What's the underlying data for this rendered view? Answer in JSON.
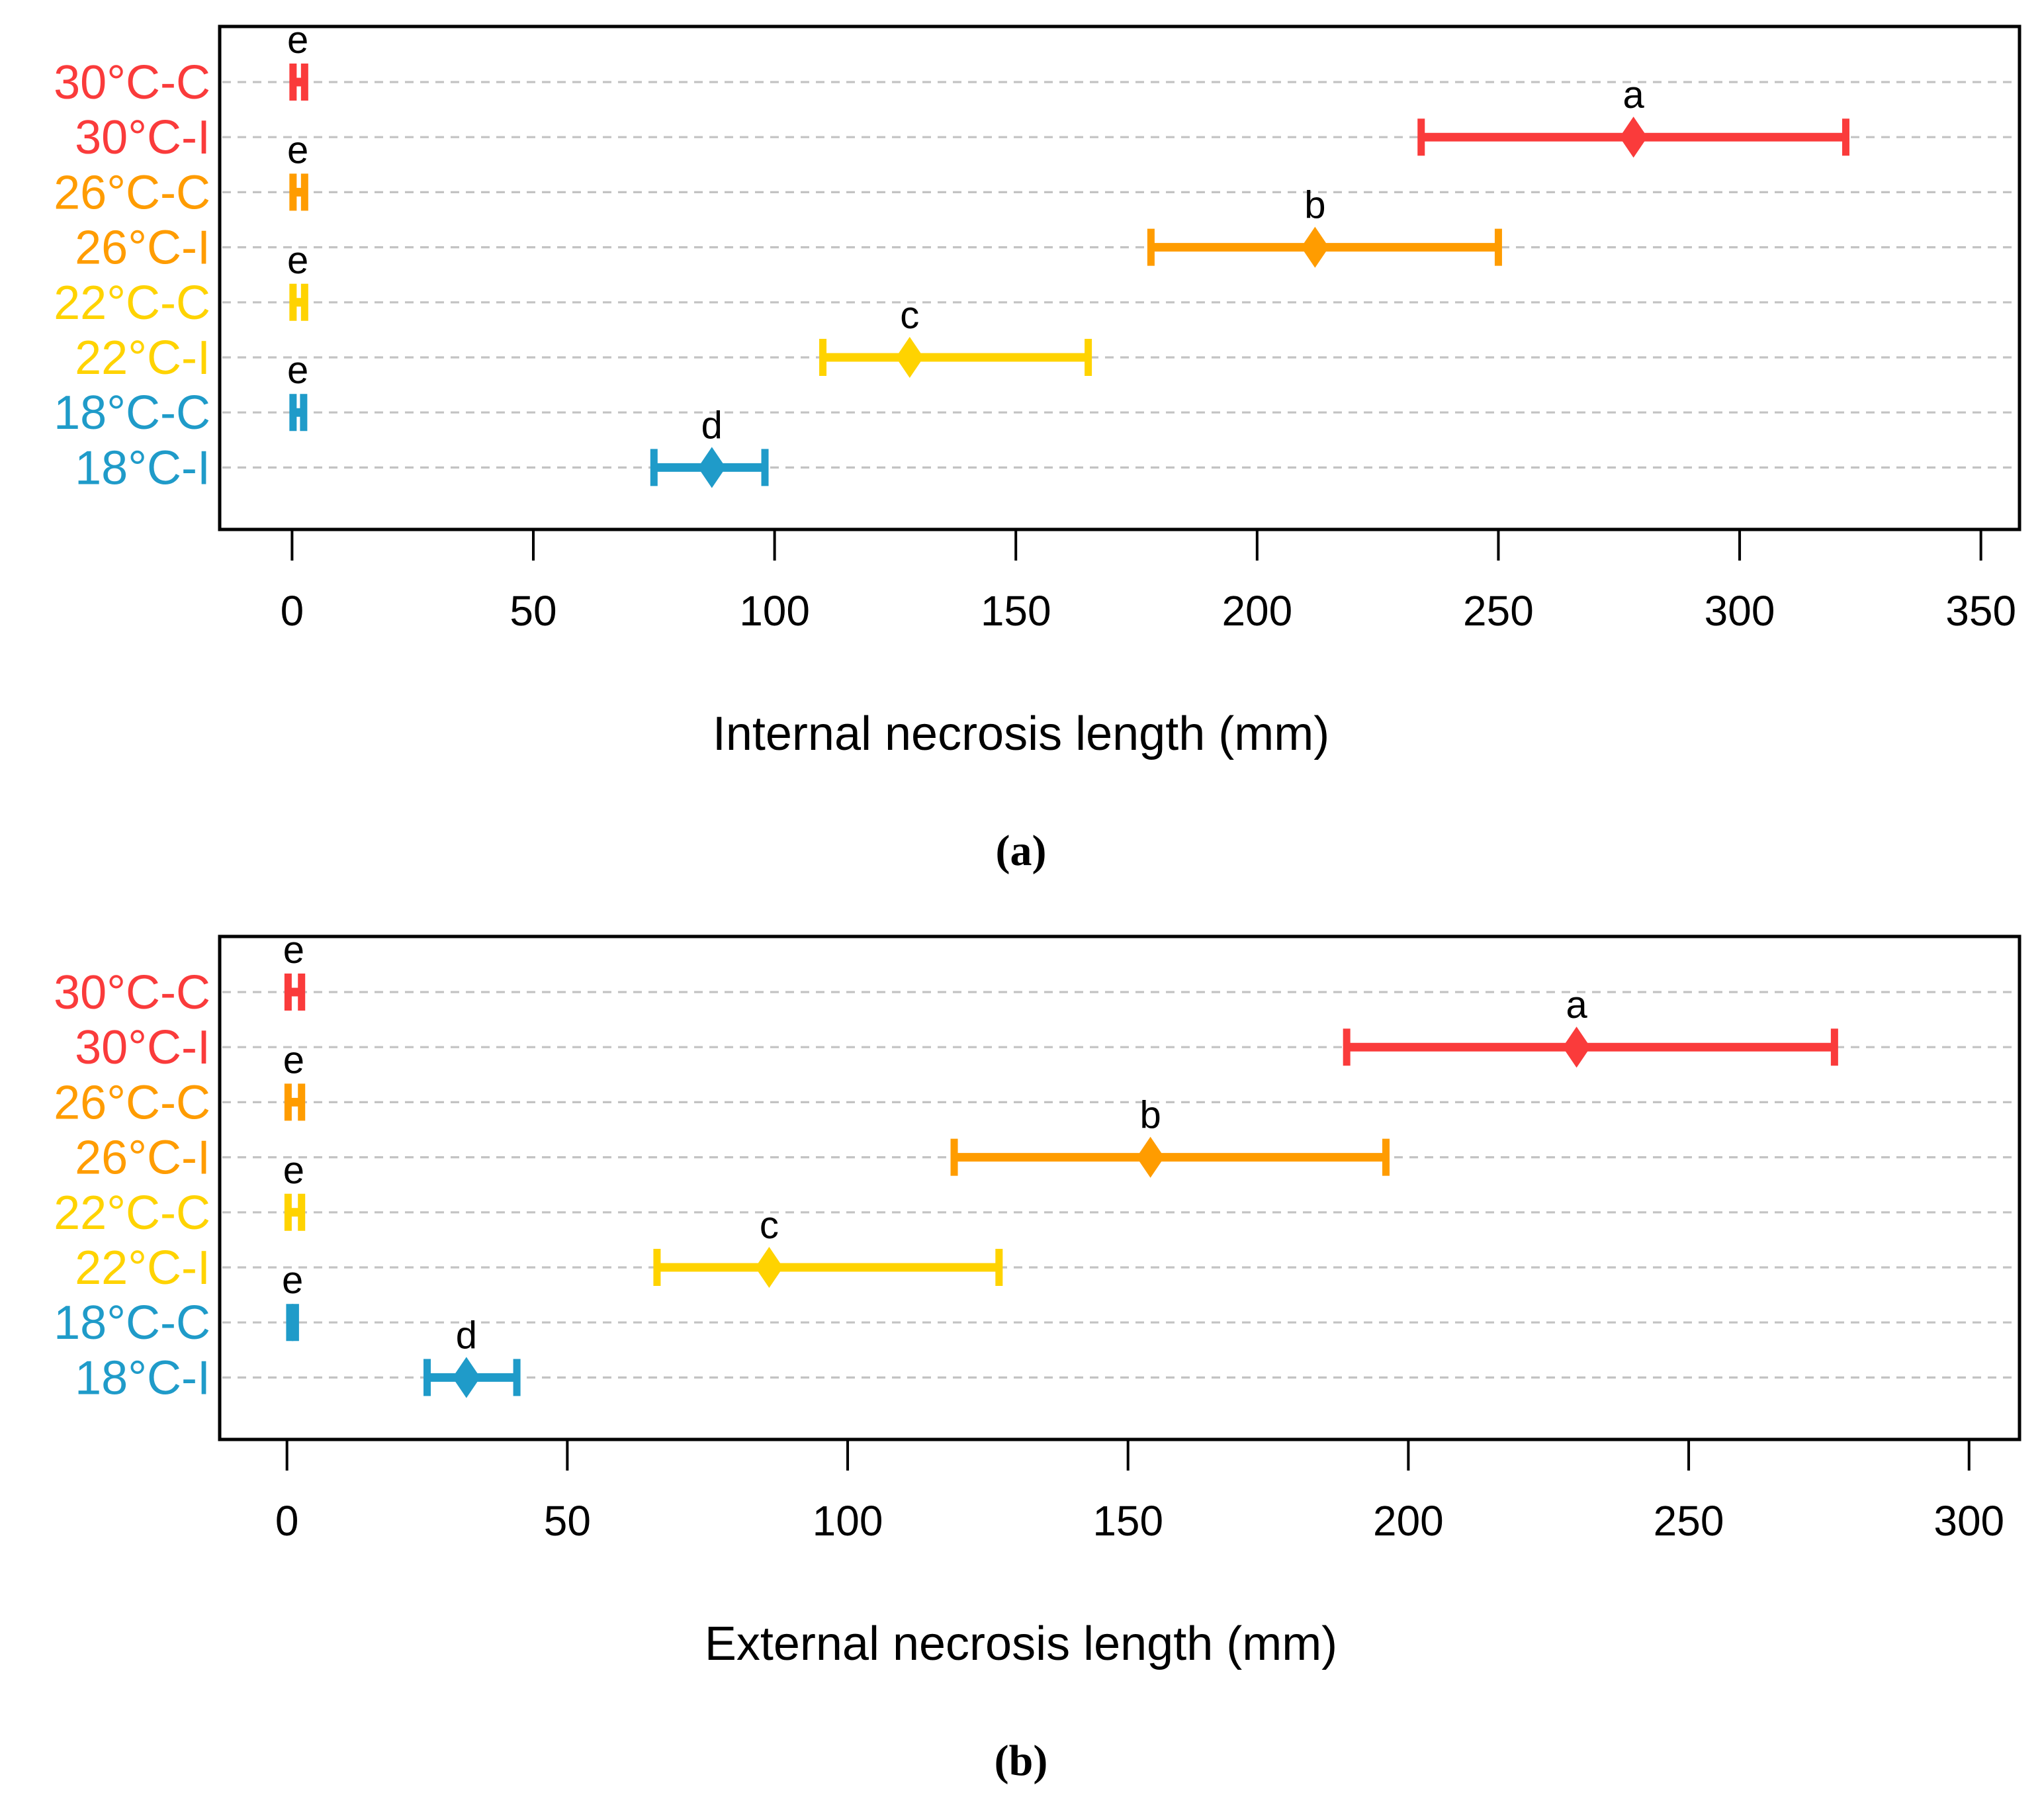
{
  "page": {
    "background": "#FFFFFF"
  },
  "colors": {
    "30°C": "#FA3B3B",
    "26°C": "#FF9C00",
    "22°C": "#FFD300",
    "18°C": "#1F9BC9",
    "grid": "#C3C3C3",
    "axis": "#000000",
    "letter": "#000000"
  },
  "chart_data": [
    {
      "type": "scatter",
      "subtype": "dot-with-horizontal-error-bars",
      "caption_label": "(a)",
      "xlabel": "Internal necrosis length (mm)",
      "xlim": [
        -15,
        358
      ],
      "x_ticks": [
        0,
        50,
        100,
        150,
        200,
        250,
        300,
        350
      ],
      "grid": "horizontal-dashed",
      "legend": "none",
      "categories": [
        "30°C-C",
        "30°C-I",
        "26°C-C",
        "26°C-I",
        "22°C-C",
        "22°C-I",
        "18°C-C",
        "18°C-I"
      ],
      "rows": [
        {
          "label": "30°C-C",
          "group": "30°C",
          "treatment": "control",
          "letter": "e",
          "mean": 1.2,
          "lo": 0.2,
          "hi": 2.6
        },
        {
          "label": "30°C-I",
          "group": "30°C",
          "treatment": "inoculated",
          "letter": "a",
          "mean": 278,
          "lo": 234,
          "hi": 322
        },
        {
          "label": "26°C-C",
          "group": "26°C",
          "treatment": "control",
          "letter": "e",
          "mean": 1.2,
          "lo": 0.2,
          "hi": 2.6
        },
        {
          "label": "26°C-I",
          "group": "26°C",
          "treatment": "inoculated",
          "letter": "b",
          "mean": 212,
          "lo": 178,
          "hi": 250
        },
        {
          "label": "22°C-C",
          "group": "22°C",
          "treatment": "control",
          "letter": "e",
          "mean": 1.2,
          "lo": 0.2,
          "hi": 2.6
        },
        {
          "label": "22°C-I",
          "group": "22°C",
          "treatment": "inoculated",
          "letter": "c",
          "mean": 128,
          "lo": 110,
          "hi": 165
        },
        {
          "label": "18°C-C",
          "group": "18°C",
          "treatment": "control",
          "letter": "e",
          "mean": 1.2,
          "lo": 0.2,
          "hi": 2.4
        },
        {
          "label": "18°C-I",
          "group": "18°C",
          "treatment": "inoculated",
          "letter": "d",
          "mean": 87,
          "lo": 75,
          "hi": 98
        }
      ]
    },
    {
      "type": "scatter",
      "subtype": "dot-with-horizontal-error-bars",
      "caption_label": "(b)",
      "xlabel": "External necrosis length (mm)",
      "xlim": [
        -12,
        309
      ],
      "x_ticks": [
        0,
        50,
        100,
        150,
        200,
        250,
        300
      ],
      "grid": "horizontal-dashed",
      "legend": "none",
      "categories": [
        "30°C-C",
        "30°C-I",
        "26°C-C",
        "26°C-I",
        "22°C-C",
        "22°C-I",
        "18°C-C",
        "18°C-I"
      ],
      "rows": [
        {
          "label": "30°C-C",
          "group": "30°C",
          "treatment": "control",
          "letter": "e",
          "mean": 1.2,
          "lo": 0.2,
          "hi": 2.6
        },
        {
          "label": "30°C-I",
          "group": "30°C",
          "treatment": "inoculated",
          "letter": "a",
          "mean": 230,
          "lo": 189,
          "hi": 276
        },
        {
          "label": "26°C-C",
          "group": "26°C",
          "treatment": "control",
          "letter": "e",
          "mean": 1.2,
          "lo": 0.2,
          "hi": 2.6
        },
        {
          "label": "26°C-I",
          "group": "26°C",
          "treatment": "inoculated",
          "letter": "b",
          "mean": 154,
          "lo": 119,
          "hi": 196
        },
        {
          "label": "22°C-C",
          "group": "22°C",
          "treatment": "control",
          "letter": "e",
          "mean": 1.2,
          "lo": 0.2,
          "hi": 2.6
        },
        {
          "label": "22°C-I",
          "group": "22°C",
          "treatment": "inoculated",
          "letter": "c",
          "mean": 86,
          "lo": 66,
          "hi": 127
        },
        {
          "label": "18°C-C",
          "group": "18°C",
          "treatment": "control",
          "letter": "e",
          "mean": 1.0,
          "lo": 0.5,
          "hi": 1.5
        },
        {
          "label": "18°C-I",
          "group": "18°C",
          "treatment": "inoculated",
          "letter": "d",
          "mean": 32,
          "lo": 25,
          "hi": 41
        }
      ]
    }
  ]
}
